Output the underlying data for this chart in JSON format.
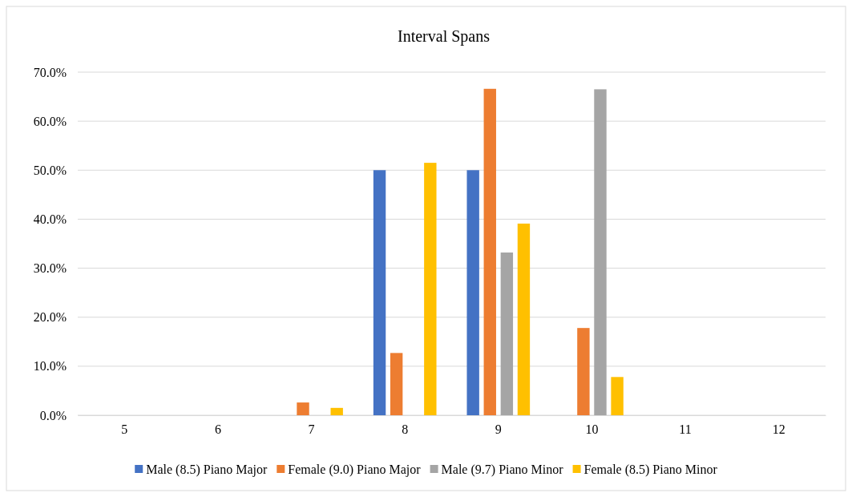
{
  "chart_data": {
    "type": "bar",
    "title": "Interval Spans",
    "categories": [
      "5",
      "6",
      "7",
      "8",
      "9",
      "10",
      "11",
      "12"
    ],
    "series": [
      {
        "name": "Male (8.5) Piano Major",
        "color": "#4472c4",
        "values": [
          0,
          0,
          0,
          50,
          50,
          0,
          0,
          0
        ]
      },
      {
        "name": "Female (9.0) Piano Major",
        "color": "#ed7d31",
        "values": [
          0,
          0,
          2.6,
          12.7,
          66.6,
          17.8,
          0,
          0
        ]
      },
      {
        "name": "Male (9.7) Piano Minor",
        "color": "#a5a5a5",
        "values": [
          0,
          0,
          0,
          0,
          33.2,
          66.5,
          0,
          0
        ]
      },
      {
        "name": "Female (8.5) Piano Minor",
        "color": "#ffc000",
        "values": [
          0,
          0,
          1.5,
          51.5,
          39.1,
          7.8,
          0,
          0
        ]
      }
    ],
    "ylim": [
      0,
      70
    ],
    "yticks": [
      {
        "value": 0,
        "label": "0.0%"
      },
      {
        "value": 10,
        "label": "10.0%"
      },
      {
        "value": 20,
        "label": "20.0%"
      },
      {
        "value": 30,
        "label": "30.0%"
      },
      {
        "value": 40,
        "label": "40.0%"
      },
      {
        "value": 50,
        "label": "50.0%"
      },
      {
        "value": 60,
        "label": "60.0%"
      },
      {
        "value": 70,
        "label": "70.0%"
      }
    ],
    "grid": "y",
    "legend": "bottom"
  }
}
